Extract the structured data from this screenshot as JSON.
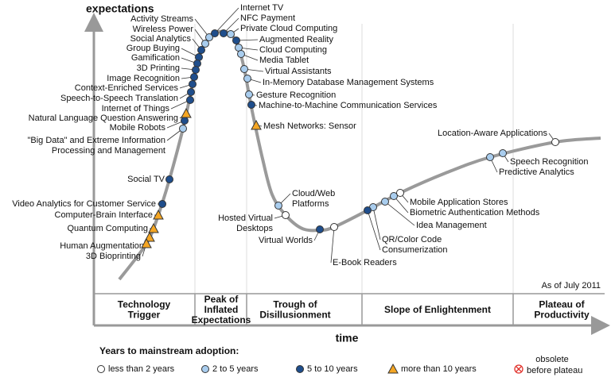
{
  "y_axis_label": "expectations",
  "x_axis_label": "time",
  "date_note": "As of July 2011",
  "phases": [
    {
      "lines": [
        "Technology",
        "Trigger"
      ]
    },
    {
      "lines": [
        "Peak of",
        "Inflated",
        "Expectations"
      ]
    },
    {
      "lines": [
        "Trough of",
        "Disillusionment"
      ]
    },
    {
      "lines": [
        "Slope of Enlightenment"
      ]
    },
    {
      "lines": [
        "Plateau of",
        "Productivity"
      ]
    }
  ],
  "legend": {
    "title": "Years to mainstream adoption:",
    "items": [
      {
        "lines": [
          "less than 2 years"
        ],
        "technologies": [
          {
            "lines": [
              "Hosted Virtual",
              "Desktops"
            ]
          },
          {
            "lines": [
              "E-Book Readers"
            ]
          },
          {
            "lines": [
              "Mobile Application Stores"
            ]
          },
          {
            "lines": [
              "Location-Aware Applications"
            ]
          }
        ]
      },
      {
        "lines": [
          "2 to 5 years"
        ],
        "technologies": [
          {
            "lines": [
              "Activity Streams"
            ]
          },
          {
            "lines": [
              "Wireless Power"
            ]
          },
          {
            "lines": [
              "\"Big Data\" and Extreme Information",
              "Processing and Management"
            ]
          },
          {
            "lines": [
              "Private Cloud Computing"
            ]
          },
          {
            "lines": [
              "Cloud Computing"
            ]
          },
          {
            "lines": [
              "Media Tablet"
            ]
          },
          {
            "lines": [
              "Virtual Assistants"
            ]
          },
          {
            "lines": [
              "In-Memory Database Management Systems"
            ]
          },
          {
            "lines": [
              "Gesture Recognition"
            ]
          },
          {
            "lines": [
              "Cloud/Web",
              "Platforms"
            ]
          },
          {
            "lines": [
              "QR/Color Code"
            ]
          },
          {
            "lines": [
              "Idea Management"
            ]
          },
          {
            "lines": [
              "Biometric Authentication Methods"
            ]
          },
          {
            "lines": [
              "Predictive Analytics"
            ]
          },
          {
            "lines": [
              "Speech Recognition"
            ]
          }
        ]
      },
      {
        "lines": [
          "5 to 10 years"
        ],
        "technologies": [
          {
            "lines": [
              "Social Analytics"
            ]
          },
          {
            "lines": [
              "Group Buying"
            ]
          },
          {
            "lines": [
              "Gamification"
            ]
          },
          {
            "lines": [
              "3D Printing"
            ]
          },
          {
            "lines": [
              "Image Recognition"
            ]
          },
          {
            "lines": [
              "Context-Enriched Services"
            ]
          },
          {
            "lines": [
              "Speech-to-Speech Translation"
            ]
          },
          {
            "lines": [
              "Internet of Things"
            ]
          },
          {
            "lines": [
              "Mobile Robots"
            ]
          },
          {
            "lines": [
              "Social TV"
            ]
          },
          {
            "lines": [
              "Video Analytics for Customer Service"
            ]
          },
          {
            "lines": [
              "Internet TV"
            ]
          },
          {
            "lines": [
              "NFC Payment"
            ]
          },
          {
            "lines": [
              "Augmented Reality"
            ]
          },
          {
            "lines": [
              "Machine-to-Machine Communication Services"
            ]
          },
          {
            "lines": [
              "Virtual Worlds"
            ]
          },
          {
            "lines": [
              "Consumerization"
            ]
          }
        ]
      },
      {
        "lines": [
          "more than 10 years"
        ],
        "technologies": [
          {
            "lines": [
              "Natural Language Question Answering"
            ]
          },
          {
            "lines": [
              "Computer-Brain Interface"
            ]
          },
          {
            "lines": [
              "Quantum Computing"
            ]
          },
          {
            "lines": [
              "Human Augmentation"
            ]
          },
          {
            "lines": [
              "3D Bioprinting"
            ]
          },
          {
            "lines": [
              "Mesh Networks: Sensor"
            ]
          }
        ]
      },
      {
        "lines": [
          "obsolete",
          "before plateau"
        ]
      }
    ]
  }
}
